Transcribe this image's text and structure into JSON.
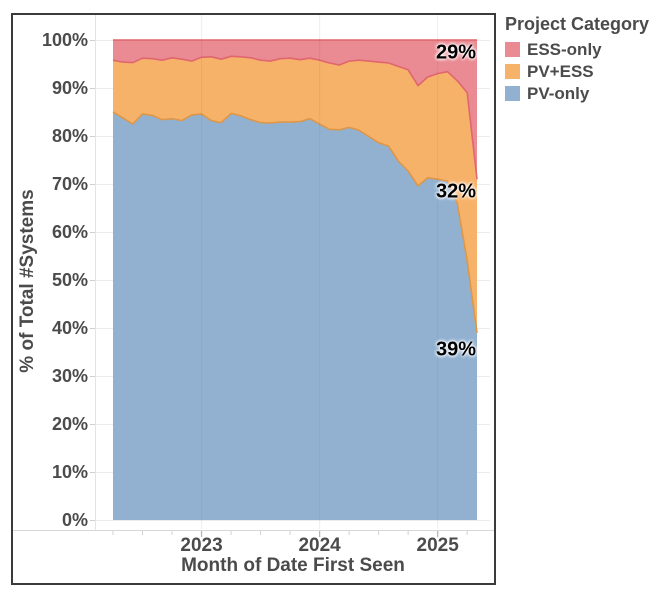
{
  "chart_data": {
    "type": "area",
    "stacked_percent": true,
    "xlabel": "Month of Date First Seen",
    "ylabel": "% of Total #Systems",
    "ylim": [
      0,
      100
    ],
    "grid": true,
    "legend_position": "top-right-outside",
    "x": [
      "2022-04",
      "2022-05",
      "2022-06",
      "2022-07",
      "2022-08",
      "2022-09",
      "2022-10",
      "2022-11",
      "2022-12",
      "2023-01",
      "2023-02",
      "2023-03",
      "2023-04",
      "2023-05",
      "2023-06",
      "2023-07",
      "2023-08",
      "2023-09",
      "2023-10",
      "2023-11",
      "2023-12",
      "2024-01",
      "2024-02",
      "2024-03",
      "2024-04",
      "2024-05",
      "2024-06",
      "2024-07",
      "2024-08",
      "2024-09",
      "2024-10",
      "2024-11",
      "2024-12",
      "2025-01",
      "2025-02",
      "2025-03",
      "2025-04",
      "2025-05"
    ],
    "series": [
      {
        "name": "ESS-only",
        "color": "#EA8A92",
        "stroke": "#E0666F",
        "values": [
          4.2,
          4.6,
          4.7,
          3.8,
          3.9,
          4.2,
          3.7,
          4.0,
          4.4,
          3.6,
          3.5,
          4.0,
          3.4,
          3.5,
          3.7,
          4.2,
          4.4,
          3.9,
          3.8,
          4.1,
          3.8,
          4.2,
          4.8,
          5.2,
          4.4,
          4.2,
          4.4,
          4.6,
          4.8,
          5.5,
          6.2,
          9.5,
          7.7,
          7.0,
          6.6,
          8.5,
          11.0,
          29.0
        ]
      },
      {
        "name": "PV+ESS",
        "color": "#F7B26A",
        "stroke": "#DD9747",
        "values": [
          10.8,
          11.6,
          12.8,
          11.6,
          11.8,
          12.4,
          12.7,
          12.8,
          11.2,
          11.8,
          13.3,
          13.2,
          11.9,
          12.3,
          12.9,
          13.0,
          12.9,
          13.2,
          13.3,
          12.9,
          12.6,
          13.3,
          13.8,
          13.5,
          13.8,
          14.6,
          15.7,
          16.8,
          17.3,
          19.7,
          21.1,
          20.9,
          21.0,
          22.0,
          22.8,
          25.5,
          35.0,
          32.0
        ]
      },
      {
        "name": "PV-only",
        "color": "#92B1D1",
        "stroke": "#7FA3C8",
        "values": [
          85.0,
          83.8,
          82.5,
          84.6,
          84.3,
          83.4,
          83.6,
          83.2,
          84.4,
          84.6,
          83.2,
          82.8,
          84.7,
          84.2,
          83.4,
          82.8,
          82.7,
          82.9,
          82.9,
          83.0,
          83.6,
          82.5,
          81.4,
          81.3,
          81.8,
          81.2,
          79.9,
          78.6,
          77.9,
          74.8,
          72.7,
          69.6,
          71.3,
          71.0,
          70.6,
          66.0,
          54.0,
          39.0
        ]
      }
    ],
    "y_ticks": [
      "0%",
      "10%",
      "20%",
      "30%",
      "40%",
      "50%",
      "60%",
      "70%",
      "80%",
      "90%",
      "100%"
    ],
    "x_ticks": [
      {
        "label": "2023",
        "month": "2023-01"
      },
      {
        "label": "2024",
        "month": "2024-01"
      },
      {
        "label": "2025",
        "month": "2025-01"
      }
    ]
  },
  "legend": {
    "title": "Project Category",
    "items": [
      {
        "label": "ESS-only",
        "color": "#EA8A92"
      },
      {
        "label": "PV+ESS",
        "color": "#F7B26A"
      },
      {
        "label": "PV-only",
        "color": "#92B1D1"
      }
    ]
  },
  "annotations": [
    {
      "label": "29%",
      "series": "ESS-only"
    },
    {
      "label": "32%",
      "series": "PV+ESS"
    },
    {
      "label": "39%",
      "series": "PV-only"
    }
  ]
}
